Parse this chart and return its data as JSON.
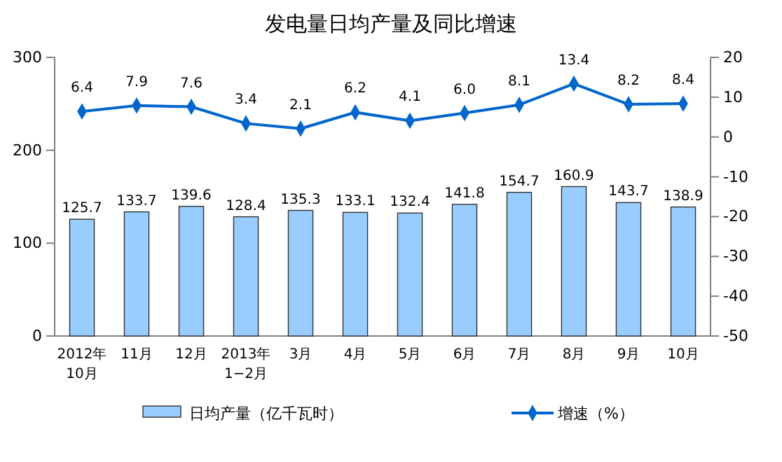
{
  "chart_data": {
    "type": "bar",
    "title": "发电量日均产量及同比增速",
    "categories": [
      "2012年\n10月",
      "11月",
      "12月",
      "2013年\n1−2月",
      "3月",
      "4月",
      "5月",
      "6月",
      "7月",
      "8月",
      "9月",
      "10月"
    ],
    "series": [
      {
        "name": "日均产量（亿千瓦时）",
        "color": "#99ccff",
        "values": [
          125.7,
          133.7,
          139.6,
          128.4,
          135.3,
          133.1,
          132.4,
          141.8,
          154.7,
          160.9,
          143.7,
          138.9
        ]
      },
      {
        "name": "增速（%）",
        "type": "line",
        "axis": "y2",
        "color": "#0066cc",
        "values": [
          6.4,
          7.9,
          7.6,
          3.4,
          2.1,
          6.2,
          4.1,
          6.0,
          8.1,
          13.4,
          8.2,
          8.4
        ],
        "value_labels": [
          "6.4",
          "7.9",
          "7.6",
          "3.4",
          "2.1",
          "6.2",
          "4.1",
          "6.0",
          "8.1",
          "13.4",
          "8.2",
          "8.4"
        ]
      }
    ],
    "ylim": [
      0,
      300
    ],
    "yticks": [
      0,
      100,
      200,
      300
    ],
    "y2lim": [
      -50,
      20
    ],
    "y2ticks": [
      -50,
      -40,
      -30,
      -20,
      -10,
      0,
      10,
      20
    ],
    "data_labels": true,
    "marker": "diamond",
    "line_style": "solid",
    "legend": "bottom",
    "grid": false
  }
}
